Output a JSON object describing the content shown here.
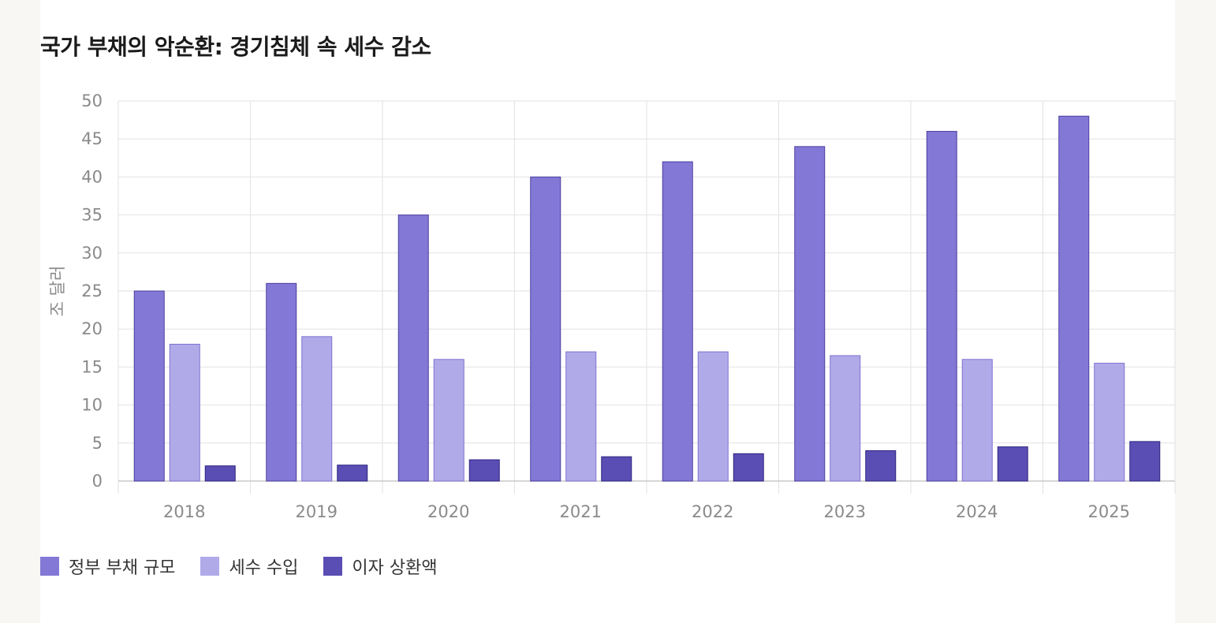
{
  "chart_data": {
    "type": "bar",
    "title": "국가 부채의 악순환: 경기침체 속 세수 감소",
    "xlabel": "",
    "ylabel": "조 달러",
    "ylim": [
      0,
      50
    ],
    "yticks": [
      0,
      5,
      10,
      15,
      20,
      25,
      30,
      35,
      40,
      45,
      50
    ],
    "grid": true,
    "legend_position": "bottom-left",
    "categories": [
      "2018",
      "2019",
      "2020",
      "2021",
      "2022",
      "2023",
      "2024",
      "2025"
    ],
    "series": [
      {
        "name": "정부 부채 규모",
        "color": "#8378d6",
        "border": "#4a3f9e",
        "values": [
          25,
          26,
          35,
          40,
          42,
          44,
          46,
          48
        ]
      },
      {
        "name": "세수 수입",
        "color": "#b1aae8",
        "border": "#7d72d0",
        "values": [
          18,
          19,
          16,
          17,
          17,
          16.5,
          16,
          15.5
        ]
      },
      {
        "name": "이자 상환액",
        "color": "#5a4db3",
        "border": "#2f2680",
        "values": [
          2,
          2.1,
          2.8,
          3.2,
          3.6,
          4,
          4.5,
          5.2
        ]
      }
    ]
  }
}
